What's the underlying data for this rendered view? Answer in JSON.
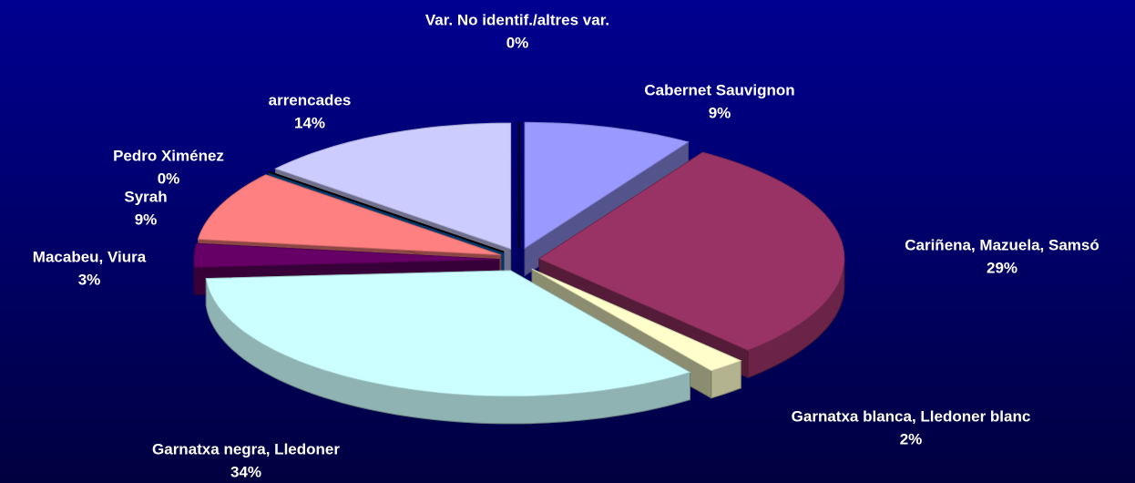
{
  "chart_data": {
    "type": "pie",
    "categories": [
      "Cabernet Sauvignon",
      "Cariñena, Mazuela, Samsó",
      "Garnatxa blanca, Lledoner blanc",
      "Garnatxa negra, Lledoner",
      "Macabeu, Viura",
      "Syrah",
      "Pedro Ximénez",
      "arrencades",
      "Var. No identif./altres var."
    ],
    "values": [
      9,
      29,
      2,
      34,
      3,
      9,
      0,
      14,
      0
    ],
    "value_labels": [
      "9%",
      "29%",
      "2%",
      "34%",
      "3%",
      "9%",
      "0%",
      "14%",
      "0%"
    ],
    "colors": [
      "#9999ff",
      "#993366",
      "#ffffcc",
      "#ccffff",
      "#660066",
      "#ff8080",
      "#0066cc",
      "#ccccff",
      "#000080"
    ]
  }
}
